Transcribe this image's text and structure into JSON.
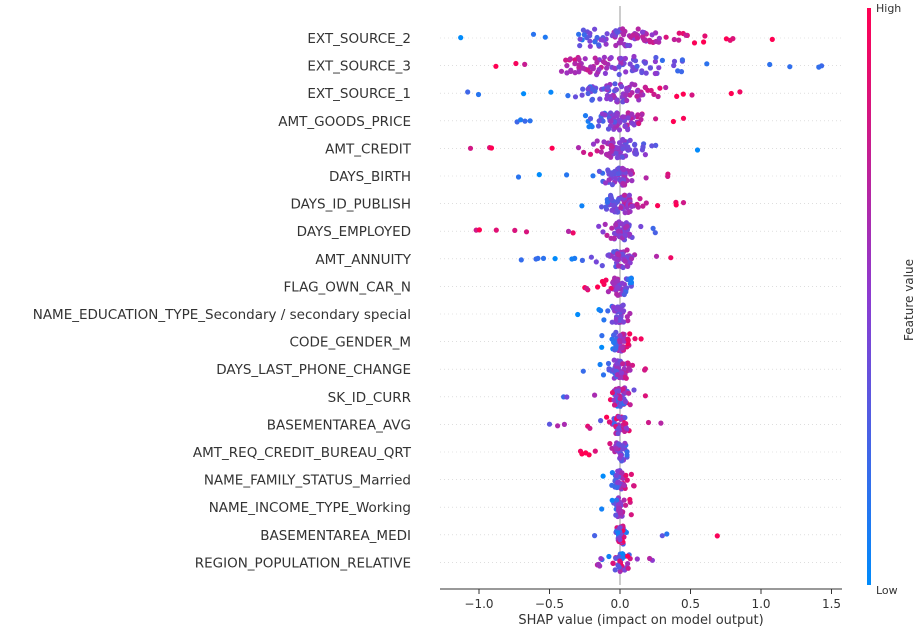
{
  "chart_data": {
    "type": "scatter",
    "subtype": "shap-beeswarm-summary",
    "xlabel": "SHAP value (impact on model output)",
    "xlim": [
      -1.27,
      1.55
    ],
    "xticks": [
      -1.0,
      -0.5,
      0.0,
      0.5,
      1.0,
      1.5
    ],
    "xtick_labels": [
      "−1.0",
      "−0.5",
      "0.0",
      "0.5",
      "1.0",
      "1.5"
    ],
    "colorbar": {
      "label": "Feature value",
      "high_label": "High",
      "low_label": "Low",
      "high_color": "#ff0052",
      "low_color": "#008bfb"
    },
    "zero_line": true,
    "features": [
      {
        "name": "EXT_SOURCE_2",
        "shap_range": [
          -1.13,
          1.08
        ],
        "spread": 0.42,
        "dots": 95,
        "polarity": "high-positive"
      },
      {
        "name": "EXT_SOURCE_3",
        "shap_range": [
          -0.88,
          1.43
        ],
        "spread": 0.48,
        "dots": 95,
        "polarity": "high-negative"
      },
      {
        "name": "EXT_SOURCE_1",
        "shap_range": [
          -1.08,
          0.85
        ],
        "spread": 0.3,
        "dots": 80,
        "polarity": "high-positive"
      },
      {
        "name": "AMT_GOODS_PRICE",
        "shap_range": [
          -0.73,
          0.45
        ],
        "spread": 0.22,
        "dots": 80,
        "polarity": "high-positive"
      },
      {
        "name": "AMT_CREDIT",
        "shap_range": [
          -1.06,
          0.55
        ],
        "spread": 0.22,
        "dots": 80,
        "polarity": "high-negative"
      },
      {
        "name": "DAYS_BIRTH",
        "shap_range": [
          -0.72,
          0.34
        ],
        "spread": 0.12,
        "dots": 60,
        "polarity": "high-positive"
      },
      {
        "name": "DAYS_ID_PUBLISH",
        "shap_range": [
          -0.27,
          0.45
        ],
        "spread": 0.14,
        "dots": 70,
        "polarity": "high-positive"
      },
      {
        "name": "DAYS_EMPLOYED",
        "shap_range": [
          -1.02,
          0.25
        ],
        "spread": 0.12,
        "dots": 65,
        "polarity": "high-negative"
      },
      {
        "name": "AMT_ANNUITY",
        "shap_range": [
          -0.7,
          0.36
        ],
        "spread": 0.1,
        "dots": 60,
        "polarity": "high-positive"
      },
      {
        "name": "FLAG_OWN_CAR_N",
        "shap_range": [
          -0.25,
          0.08
        ],
        "spread": 0.1,
        "dots": 55,
        "polarity": "high-negative"
      },
      {
        "name": "NAME_EDUCATION_TYPE_Secondary / secondary special",
        "shap_range": [
          -0.3,
          0.07
        ],
        "spread": 0.06,
        "dots": 50,
        "polarity": "high-positive"
      },
      {
        "name": "CODE_GENDER_M",
        "shap_range": [
          -0.13,
          0.15
        ],
        "spread": 0.06,
        "dots": 45,
        "polarity": "high-positive"
      },
      {
        "name": "DAYS_LAST_PHONE_CHANGE",
        "shap_range": [
          -0.26,
          0.18
        ],
        "spread": 0.08,
        "dots": 60,
        "polarity": "high-positive"
      },
      {
        "name": "SK_ID_CURR",
        "shap_range": [
          -0.4,
          0.18
        ],
        "spread": 0.07,
        "dots": 50,
        "polarity": "mixed"
      },
      {
        "name": "BASEMENTAREA_AVG",
        "shap_range": [
          -0.5,
          0.29
        ],
        "spread": 0.07,
        "dots": 50,
        "polarity": "mixed"
      },
      {
        "name": "AMT_REQ_CREDIT_BUREAU_QRT",
        "shap_range": [
          -0.28,
          0.05
        ],
        "spread": 0.06,
        "dots": 40,
        "polarity": "high-negative"
      },
      {
        "name": "NAME_FAMILY_STATUS_Married",
        "shap_range": [
          -0.12,
          0.1
        ],
        "spread": 0.05,
        "dots": 45,
        "polarity": "high-positive"
      },
      {
        "name": "NAME_INCOME_TYPE_Working",
        "shap_range": [
          -0.13,
          0.08
        ],
        "spread": 0.04,
        "dots": 45,
        "polarity": "high-positive"
      },
      {
        "name": "BASEMENTAREA_MEDI",
        "shap_range": [
          -0.18,
          0.69
        ],
        "spread": 0.04,
        "dots": 40,
        "polarity": "mixed"
      },
      {
        "name": "REGION_POPULATION_RELATIVE",
        "shap_range": [
          -0.16,
          0.23
        ],
        "spread": 0.06,
        "dots": 45,
        "polarity": "mixed"
      }
    ]
  }
}
